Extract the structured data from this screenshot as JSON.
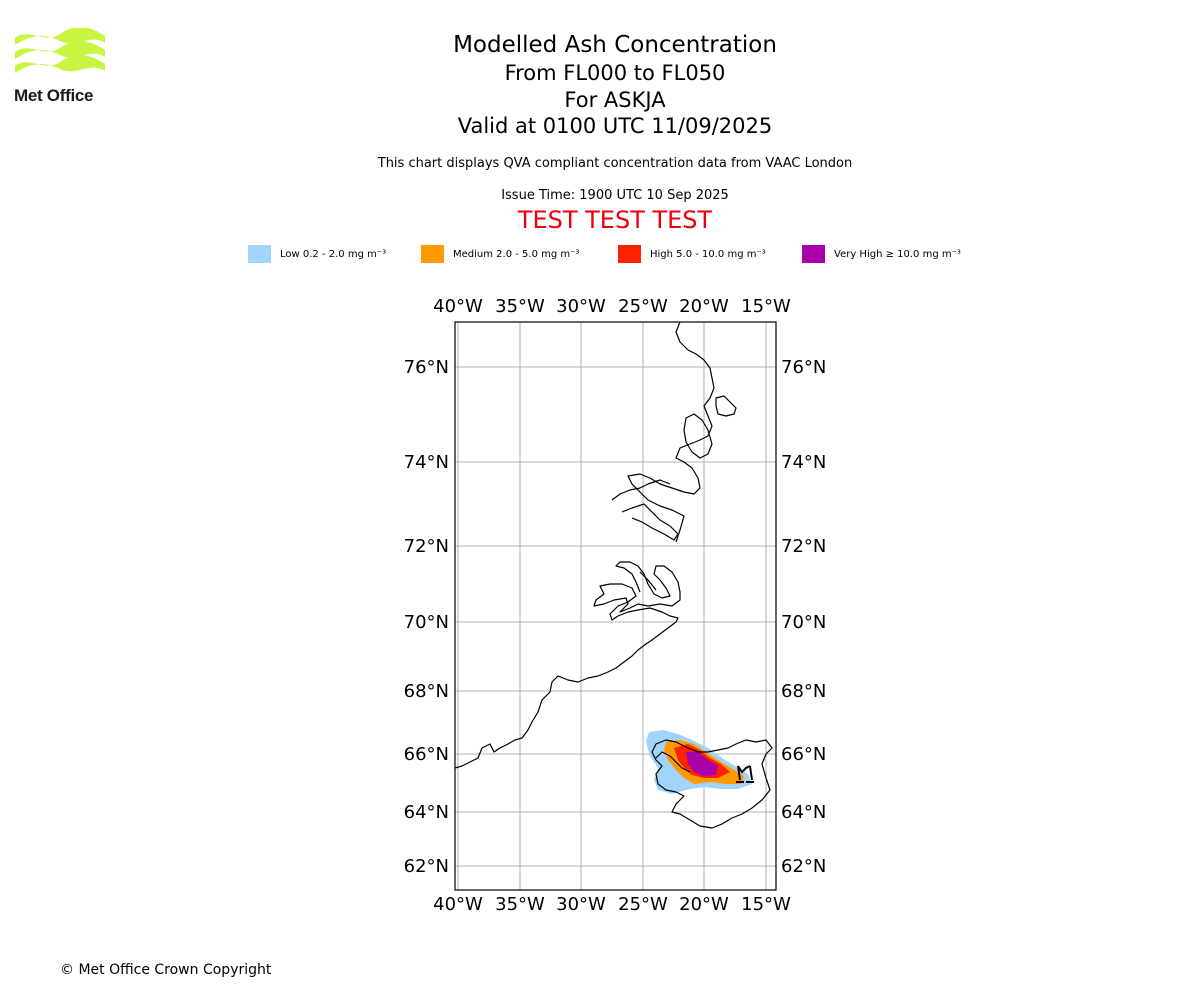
{
  "logo": {
    "text": "Met Office",
    "color": "#c8f542"
  },
  "titles": {
    "main": "Modelled Ash Concentration",
    "levels": "From FL000 to FL050",
    "volcano": "For ASKJA",
    "valid": "Valid at 0100 UTC 11/09/2025",
    "compliance": "This chart displays QVA compliant concentration data from VAAC London",
    "issue": "Issue Time: 1900 UTC 10 Sep 2025",
    "test": "TEST TEST TEST"
  },
  "legend": [
    {
      "label": "Low 0.2 - 2.0 mg m⁻³",
      "color": "#a0d4fa"
    },
    {
      "label": "Medium 2.0 - 5.0 mg m⁻³",
      "color": "#ff9900"
    },
    {
      "label": "High 5.0 - 10.0 mg m⁻³",
      "color": "#ff2200"
    },
    {
      "label": "Very High ≥ 10.0 mg m⁻³",
      "color": "#aa00aa"
    }
  ],
  "map": {
    "lon_ticks": [
      "40°W",
      "35°W",
      "30°W",
      "25°W",
      "20°W",
      "15°W"
    ],
    "lat_ticks": [
      "76°N",
      "74°N",
      "72°N",
      "70°N",
      "68°N",
      "66°N",
      "64°N",
      "62°N"
    ]
  },
  "footer": {
    "copyright": "© Met Office Crown Copyright"
  }
}
